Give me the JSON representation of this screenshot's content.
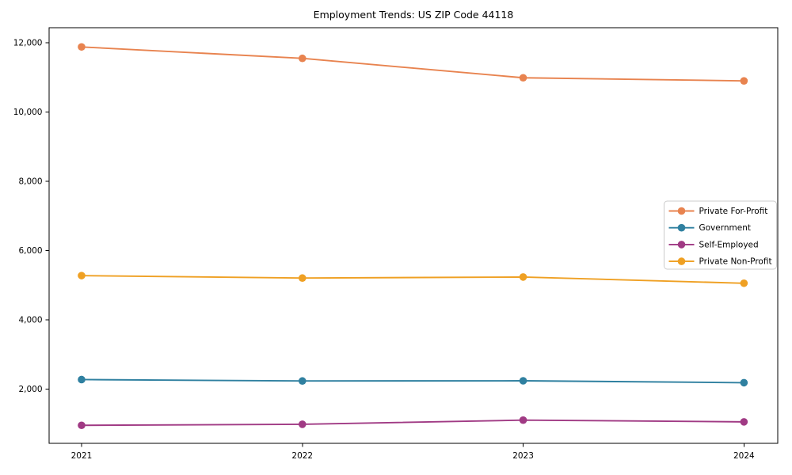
{
  "figure": {
    "background": "#ffffff",
    "text_color": "#000000",
    "spine_color": "#000000",
    "legend_border_color": "#cccccc",
    "legend_background": "#ffffff"
  },
  "chart_data": {
    "type": "line",
    "title": "Employment Trends: US ZIP Code 44118",
    "xlabel": "",
    "ylabel": "",
    "x": [
      2021,
      2022,
      2023,
      2024
    ],
    "x_tick_labels": [
      "2021",
      "2022",
      "2023",
      "2024"
    ],
    "y_ticks": [
      2000,
      4000,
      6000,
      8000,
      10000,
      12000
    ],
    "y_tick_labels": [
      "2,000",
      "4,000",
      "6,000",
      "8,000",
      "10,000",
      "12,000"
    ],
    "xlim": [
      2020.853,
      2024.153
    ],
    "ylim": [
      440,
      12435
    ],
    "grid": false,
    "marker": "o",
    "legend_position": "center-right",
    "series": [
      {
        "name": "Private For-Profit",
        "color": "#e8834f",
        "values": [
          11880,
          11550,
          10990,
          10900
        ]
      },
      {
        "name": "Government",
        "color": "#2f80a0",
        "values": [
          2280,
          2240,
          2245,
          2190
        ]
      },
      {
        "name": "Self-Employed",
        "color": "#a03a84",
        "values": [
          960,
          990,
          1110,
          1060
        ]
      },
      {
        "name": "Private Non-Profit",
        "color": "#efa023",
        "values": [
          5280,
          5210,
          5240,
          5060
        ]
      }
    ]
  }
}
